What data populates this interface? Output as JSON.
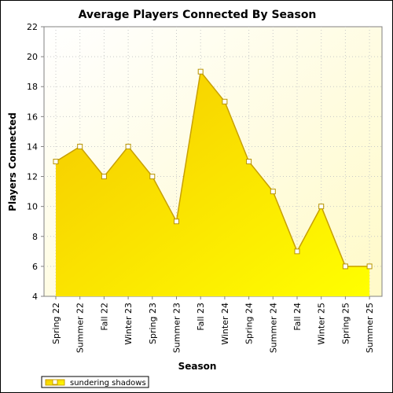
{
  "chart_data": {
    "type": "area",
    "title": "Average Players Connected By Season",
    "xlabel": "Season",
    "ylabel": "Players Connected",
    "categories": [
      "Spring 22",
      "Summer 22",
      "Fall 22",
      "Winter 23",
      "Spring 23",
      "Summer 23",
      "Fall 23",
      "Winter 24",
      "Spring 24",
      "Summer 24",
      "Fall 24",
      "Winter 25",
      "Spring 25",
      "Summer 25"
    ],
    "series": [
      {
        "name": "sundering shadows",
        "values": [
          13,
          14,
          12,
          14,
          12,
          9,
          19,
          17,
          13,
          11,
          7,
          10,
          6,
          6
        ]
      }
    ],
    "ylim": [
      4,
      22
    ],
    "yticks": [
      4,
      6,
      8,
      10,
      12,
      14,
      16,
      18,
      20,
      22
    ],
    "grid": true,
    "legend": "bottom-left",
    "colors": {
      "plot_bg_top": "#fffff0",
      "plot_bg_bottom": "#ffffd0",
      "fill_top": "#f5cc00",
      "fill_bottom": "#ffff00",
      "line": "#c8a000",
      "marker_fill": "#ffffff",
      "grid": "#c8c8c8"
    }
  }
}
